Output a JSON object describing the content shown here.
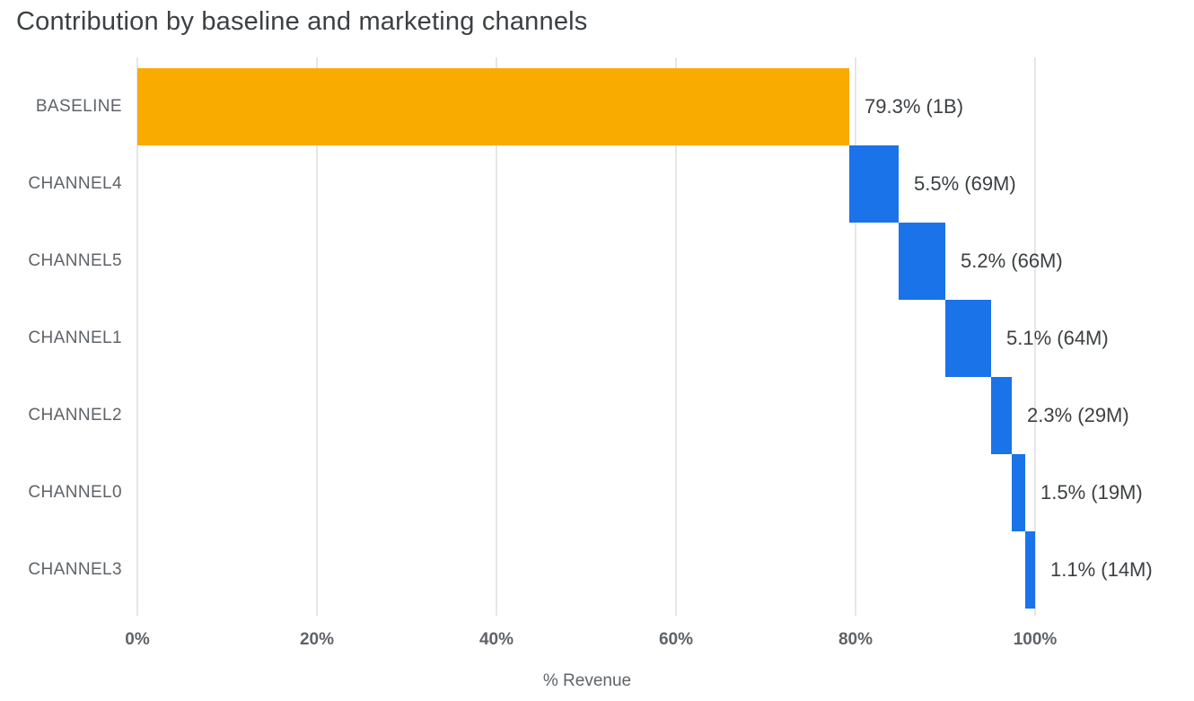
{
  "title": "Contribution by baseline and marketing channels",
  "colors": {
    "baseline": "#F9AB00",
    "channel": "#1A73E8",
    "gridline": "#e6e6e6",
    "title_text": "#3c4043",
    "axis_text": "#5f6368",
    "value_text": "#3c4043"
  },
  "chart_data": {
    "type": "bar",
    "subtype": "horizontal-waterfall",
    "title": "Contribution by baseline and marketing channels",
    "xlabel": "% Revenue",
    "ylabel": "",
    "xlim": [
      0,
      100
    ],
    "grid": "vertical",
    "legend": "none",
    "x_ticks": [
      "0%",
      "20%",
      "40%",
      "60%",
      "80%",
      "100%"
    ],
    "x_tick_values": [
      0,
      20,
      40,
      60,
      80,
      100
    ],
    "categories": [
      "BASELINE",
      "CHANNEL4",
      "CHANNEL5",
      "CHANNEL1",
      "CHANNEL2",
      "CHANNEL0",
      "CHANNEL3"
    ],
    "bars": [
      {
        "category": "BASELINE",
        "start": 0,
        "end": 79.3,
        "value": 79.3,
        "raw": "1B",
        "label": "79.3% (1B)",
        "role": "baseline"
      },
      {
        "category": "CHANNEL4",
        "start": 79.3,
        "end": 84.8,
        "value": 5.5,
        "raw": "69M",
        "label": "5.5% (69M)",
        "role": "channel"
      },
      {
        "category": "CHANNEL5",
        "start": 84.8,
        "end": 90.0,
        "value": 5.2,
        "raw": "66M",
        "label": "5.2% (66M)",
        "role": "channel"
      },
      {
        "category": "CHANNEL1",
        "start": 90.0,
        "end": 95.1,
        "value": 5.1,
        "raw": "64M",
        "label": "5.1% (64M)",
        "role": "channel"
      },
      {
        "category": "CHANNEL2",
        "start": 95.1,
        "end": 97.4,
        "value": 2.3,
        "raw": "29M",
        "label": "2.3% (29M)",
        "role": "channel"
      },
      {
        "category": "CHANNEL0",
        "start": 97.4,
        "end": 98.9,
        "value": 1.5,
        "raw": "19M",
        "label": "1.5% (19M)",
        "role": "channel"
      },
      {
        "category": "CHANNEL3",
        "start": 98.9,
        "end": 100.0,
        "value": 1.1,
        "raw": "14M",
        "label": "1.1% (14M)",
        "role": "channel"
      }
    ]
  }
}
